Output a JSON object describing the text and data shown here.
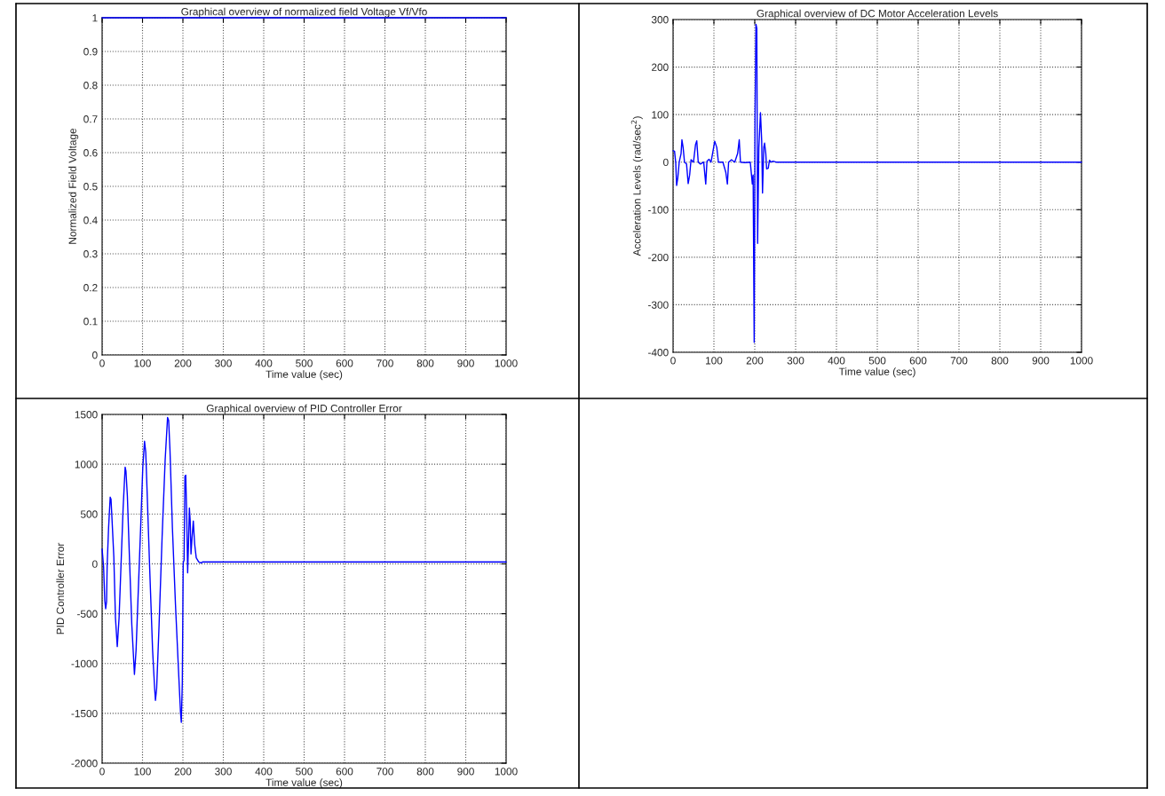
{
  "chart_data": [
    {
      "type": "line",
      "title": "Graphical overview of normalized field Voltage Vf/Vfo",
      "xlabel": "Time value (sec)",
      "ylabel": "Normalized Field Voltage",
      "xlim": [
        0,
        1000
      ],
      "xticks": [
        0,
        100,
        200,
        300,
        400,
        500,
        600,
        700,
        800,
        900,
        1000
      ],
      "ylim": [
        0,
        1
      ],
      "yticks": [
        0,
        0.1,
        0.2,
        0.3,
        0.4,
        0.5,
        0.6,
        0.7,
        0.8,
        0.9,
        1
      ],
      "grid": true,
      "series": [
        {
          "color": "#0000ff",
          "x": [
            0,
            1000
          ],
          "values": [
            1,
            1
          ]
        }
      ]
    },
    {
      "type": "line",
      "title": "Graphical overview of DC Motor Acceleration Levels",
      "xlabel": "Time value (sec)",
      "ylabel": "Acceleration Levels (rad/sec$^{2}$)",
      "xlim": [
        0,
        1000
      ],
      "xticks": [
        0,
        100,
        200,
        300,
        400,
        500,
        600,
        700,
        800,
        900,
        1000
      ],
      "ylim": [
        -400,
        300
      ],
      "yticks": [
        -400,
        -300,
        -200,
        -100,
        0,
        100,
        200,
        300
      ],
      "grid": true,
      "series": [
        {
          "color": "#0000ff",
          "x": [
            0,
            3.6,
            6.5,
            8.7,
            11.6,
            15,
            19.6,
            21.7,
            24.6,
            28,
            33,
            37,
            40.6,
            44,
            50,
            55,
            58,
            61.6,
            67,
            75,
            80,
            83,
            88,
            93,
            102,
            107,
            111,
            122,
            129,
            133,
            136,
            143,
            151,
            158,
            162,
            165,
            176,
            189,
            192,
            194,
            196,
            198.6,
            200.7,
            203,
            205,
            207,
            210,
            214,
            217,
            219,
            222,
            224,
            227,
            229,
            233,
            236,
            240,
            245,
            252,
            1000
          ],
          "values": [
            24,
            23,
            -1,
            -49,
            -33,
            0,
            18,
            47,
            31,
            0,
            -4,
            -45,
            -27,
            5,
            0,
            37,
            45,
            0,
            -4,
            0,
            -46,
            2,
            6,
            0,
            44,
            31,
            0,
            0,
            -21,
            -46,
            0,
            5,
            0,
            18,
            47,
            0,
            -1,
            0,
            -27,
            -46,
            -27,
            -379,
            98,
            290,
            281,
            -171,
            31,
            104,
            44,
            -65,
            31,
            40,
            18,
            -14,
            -13,
            4,
            0,
            2,
            0,
            0
          ]
        }
      ]
    },
    {
      "type": "line",
      "title": "Graphical overview of PID Controller Error",
      "xlabel": "Time value (sec)",
      "ylabel": "PID Controller Error",
      "xlim": [
        0,
        1000
      ],
      "xticks": [
        0,
        100,
        200,
        300,
        400,
        500,
        600,
        700,
        800,
        900,
        1000
      ],
      "ylim": [
        -2000,
        1500
      ],
      "yticks": [
        -2000,
        -1500,
        -1000,
        -500,
        0,
        500,
        1000,
        1500
      ],
      "grid": true,
      "series": [
        {
          "color": "#0000ff",
          "x": [
            0,
            3.7,
            6.6,
            8.8,
            11,
            12.5,
            16,
            20,
            22,
            24,
            29,
            33,
            37.5,
            42,
            47,
            52,
            57,
            59,
            62.5,
            67.6,
            73.5,
            80,
            84,
            89.7,
            95.6,
            100.7,
            105,
            108,
            112.5,
            117.6,
            125,
            130,
            132,
            135,
            141,
            148.5,
            156,
            162,
            164.7,
            168,
            174,
            181.6,
            189,
            194,
            196,
            198.5,
            200.7,
            203,
            205,
            207,
            209.5,
            211.7,
            214,
            216,
            218,
            220,
            222,
            225.7,
            229,
            233,
            239,
            245,
            249,
            255,
            1000
          ],
          "values": [
            150,
            -30,
            -370,
            -450,
            -380,
            -10,
            360,
            670,
            650,
            490,
            70,
            -540,
            -830,
            -540,
            10,
            560,
            970,
            930,
            680,
            70,
            -610,
            -1110,
            -870,
            -250,
            390,
            970,
            1230,
            1120,
            590,
            -30,
            -870,
            -1250,
            -1370,
            -1250,
            -610,
            270,
            1040,
            1470,
            1440,
            1140,
            360,
            -410,
            -1060,
            -1490,
            -1590,
            -1190,
            10,
            40,
            880,
            890,
            460,
            -90,
            230,
            560,
            430,
            100,
            230,
            430,
            200,
            60,
            20,
            10,
            20,
            20,
            20
          ]
        }
      ]
    }
  ]
}
